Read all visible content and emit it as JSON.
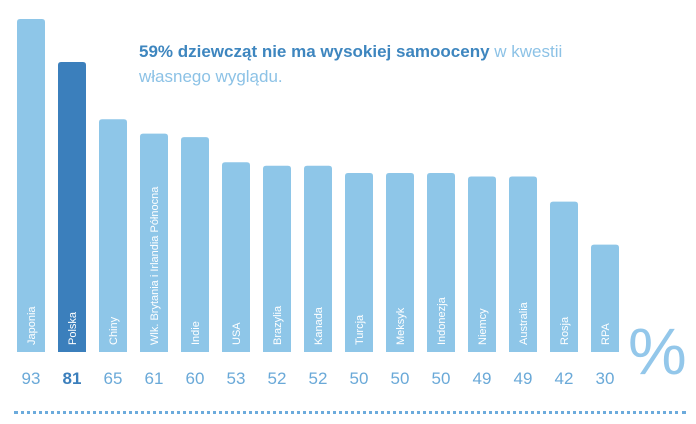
{
  "headline": {
    "bold": "59% dziewcząt nie ma wysokiej samooceny",
    "rest": " w kwestii własnego wyglądu."
  },
  "unit_symbol": "%",
  "colors": {
    "bar": "#8ec6e8",
    "highlight": "#3b7fbc",
    "value_text": "#6aa9d8",
    "highlight_value_text": "#3b7fbc"
  },
  "chart_data": {
    "type": "bar",
    "categories": [
      "Japonia",
      "Polska",
      "Chiny",
      "Wlk. Brytania i Irlandia Północna",
      "Indie",
      "USA",
      "Brazylia",
      "Kanada",
      "Turcja",
      "Meksyk",
      "Indonezja",
      "Niemcy",
      "Australia",
      "Rosja",
      "RPA"
    ],
    "values": [
      93,
      81,
      65,
      61,
      60,
      53,
      52,
      52,
      50,
      50,
      50,
      49,
      49,
      42,
      30
    ],
    "highlight": "Polska",
    "ylim": [
      0,
      93
    ],
    "ylabel": "%",
    "grid": false
  }
}
